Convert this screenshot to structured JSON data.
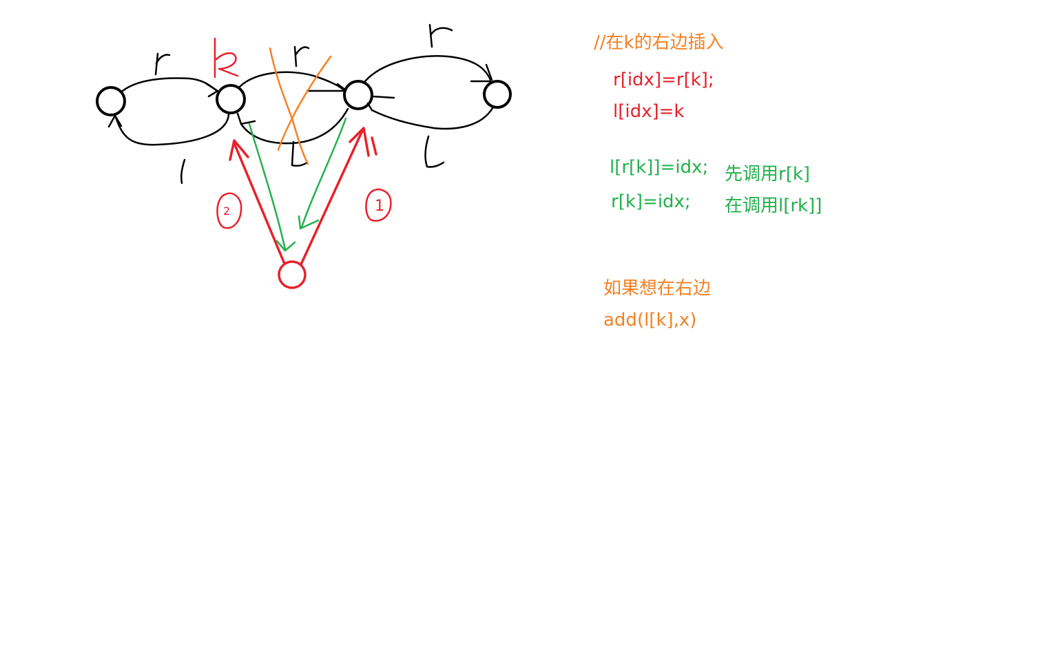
{
  "colors": {
    "black": "#000000",
    "red": "#e8202a",
    "green": "#22b14c",
    "orange": "#f58023",
    "background": "#ffffff"
  },
  "handwritten_labels": {
    "k_label": "k",
    "r_labels": [
      "r",
      "r",
      "r"
    ],
    "l_labels": [
      "l",
      "l",
      "l"
    ],
    "circled_numbers": [
      "2",
      "1"
    ]
  },
  "notes": {
    "comment": "//在k的右边插入",
    "code_red": [
      "r[idx]=r[k];",
      "l[idx]=k"
    ],
    "code_green": [
      "l[r[k]]=idx;",
      "r[k]=idx;"
    ],
    "order_green": [
      "先调用r[k]",
      "在调用l[rk]]"
    ],
    "tip_orange": [
      "如果想在右边",
      "add(l[k],x)"
    ]
  }
}
